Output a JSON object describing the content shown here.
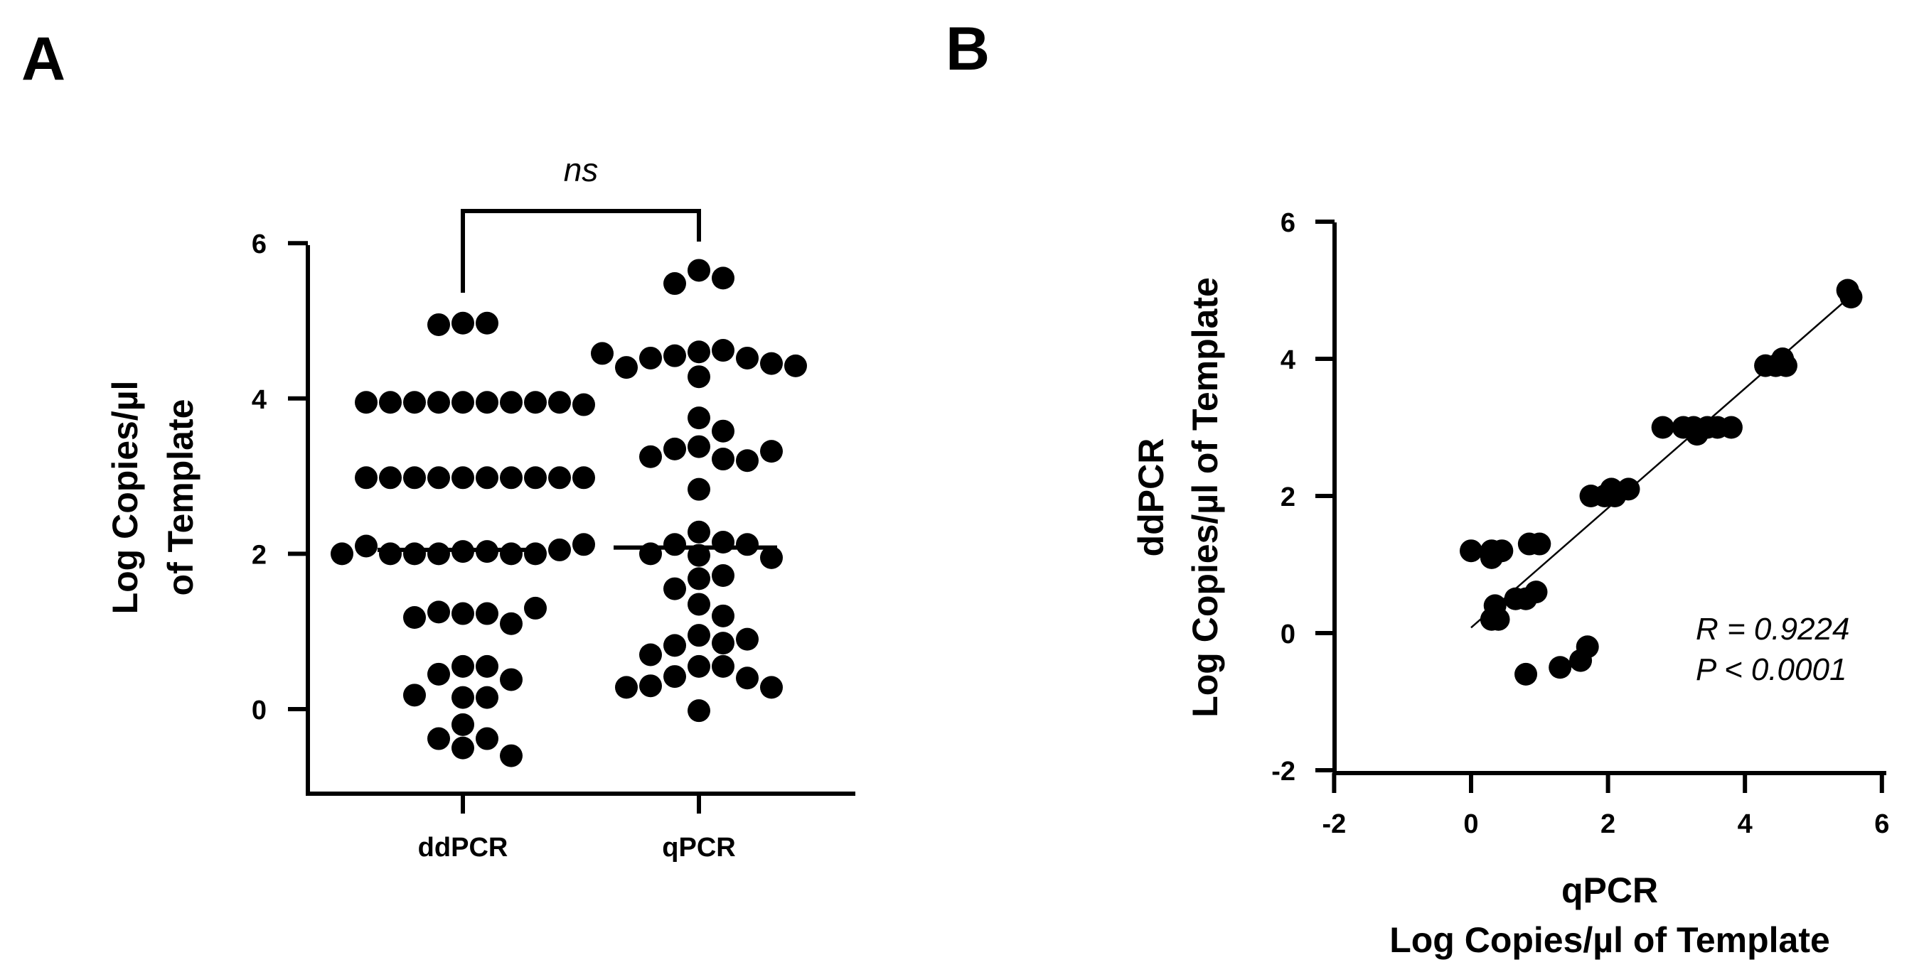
{
  "chart_data": [
    {
      "panel": "A",
      "type": "scatter",
      "categories": [
        "ddPCR",
        "qPCR"
      ],
      "ylabel_line1": "Log Copies/µl",
      "ylabel_line2": "of Template",
      "yticks": [
        "0",
        "2",
        "4",
        "6"
      ],
      "ylim": [
        -1,
        6
      ],
      "significance_label": "ns",
      "series": [
        {
          "category": "ddPCR",
          "median": 2.05,
          "values": [
            4.97,
            4.97,
            4.95,
            3.95,
            3.95,
            3.95,
            3.95,
            3.95,
            3.95,
            3.95,
            3.95,
            3.95,
            3.92,
            2.98,
            2.98,
            2.98,
            2.98,
            2.98,
            2.98,
            2.98,
            2.98,
            2.98,
            2.98,
            2.03,
            2.03,
            2.0,
            2.0,
            2.0,
            2.0,
            2.0,
            2.05,
            2.1,
            2.12,
            2.0,
            1.23,
            1.23,
            1.25,
            1.1,
            1.18,
            1.3,
            0.55,
            0.55,
            0.45,
            0.38,
            0.15,
            0.15,
            0.18,
            -0.2,
            -0.38,
            -0.38,
            -0.5,
            -0.6
          ]
        },
        {
          "category": "qPCR",
          "median": 2.08,
          "values": [
            5.65,
            5.55,
            5.48,
            4.6,
            4.62,
            4.55,
            4.52,
            4.52,
            4.45,
            4.4,
            4.28,
            4.42,
            4.58,
            3.75,
            3.58,
            3.38,
            3.35,
            3.22,
            3.2,
            3.25,
            3.32,
            2.83,
            2.28,
            2.15,
            2.12,
            2.12,
            2.0,
            1.98,
            1.95,
            1.72,
            1.68,
            1.55,
            1.35,
            1.2,
            0.95,
            0.85,
            0.82,
            0.9,
            0.55,
            0.7,
            0.55,
            0.42,
            0.4,
            0.3,
            0.28,
            0.28,
            -0.02
          ]
        }
      ]
    },
    {
      "panel": "B",
      "type": "scatter",
      "xlabel_line1": "qPCR",
      "xlabel_line2": "Log Copies/µl of Template",
      "ylabel_line1": "ddPCR",
      "ylabel_line2": "Log Copies/µl of Template",
      "xticks": [
        "-2",
        "0",
        "2",
        "4",
        "6"
      ],
      "yticks": [
        "-2",
        "0",
        "2",
        "4",
        "6"
      ],
      "xlim": [
        -2,
        6
      ],
      "ylim": [
        -2,
        6
      ],
      "annotation_r": "R = 0.9224",
      "annotation_p": "P < 0.0001",
      "fit_line": {
        "x1": 0.0,
        "y1": 0.08,
        "x2": 5.55,
        "y2": 4.92
      },
      "points": [
        {
          "x": 0.0,
          "y": 1.2
        },
        {
          "x": 0.3,
          "y": 1.1
        },
        {
          "x": 0.3,
          "y": 1.2
        },
        {
          "x": 0.45,
          "y": 1.2
        },
        {
          "x": 0.35,
          "y": 0.4
        },
        {
          "x": 0.3,
          "y": 0.2
        },
        {
          "x": 0.4,
          "y": 0.2
        },
        {
          "x": 0.65,
          "y": 0.5
        },
        {
          "x": 0.8,
          "y": 0.5
        },
        {
          "x": 0.8,
          "y": -0.6
        },
        {
          "x": 0.95,
          "y": 0.6
        },
        {
          "x": 0.85,
          "y": 1.3
        },
        {
          "x": 1.0,
          "y": 1.3
        },
        {
          "x": 1.3,
          "y": -0.5
        },
        {
          "x": 1.6,
          "y": -0.4
        },
        {
          "x": 1.7,
          "y": -0.2
        },
        {
          "x": 1.75,
          "y": 2.0
        },
        {
          "x": 1.95,
          "y": 2.0
        },
        {
          "x": 2.05,
          "y": 2.1
        },
        {
          "x": 2.1,
          "y": 2.0
        },
        {
          "x": 2.3,
          "y": 2.1
        },
        {
          "x": 2.8,
          "y": 3.0
        },
        {
          "x": 3.1,
          "y": 3.0
        },
        {
          "x": 3.25,
          "y": 3.0
        },
        {
          "x": 3.3,
          "y": 2.9
        },
        {
          "x": 3.45,
          "y": 3.0
        },
        {
          "x": 3.6,
          "y": 3.0
        },
        {
          "x": 3.8,
          "y": 3.0
        },
        {
          "x": 4.3,
          "y": 3.9
        },
        {
          "x": 4.45,
          "y": 3.9
        },
        {
          "x": 4.55,
          "y": 4.0
        },
        {
          "x": 4.6,
          "y": 3.9
        },
        {
          "x": 5.5,
          "y": 5.0
        },
        {
          "x": 5.55,
          "y": 4.9
        }
      ]
    }
  ],
  "panel_labels": {
    "a": "A",
    "b": "B"
  }
}
